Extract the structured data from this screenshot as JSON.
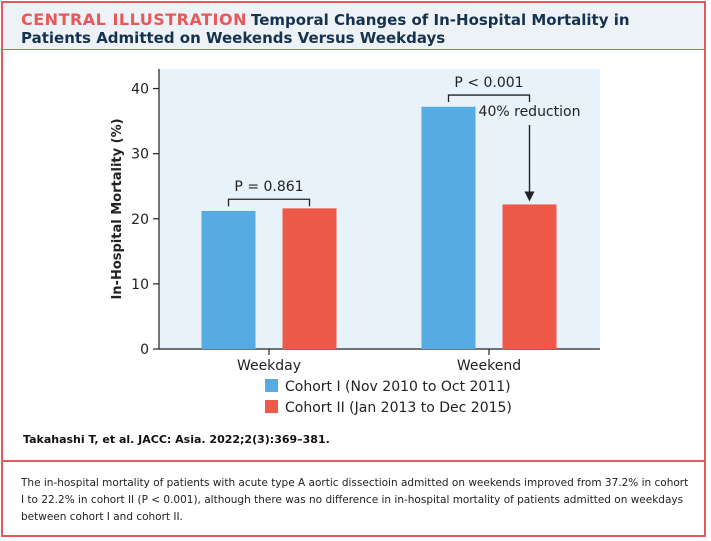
{
  "header": {
    "tag": "CENTRAL ILLUSTRATION",
    "title": "Temporal Changes of In-Hospital Mortality in Patients Admitted on Weekends Versus Weekdays"
  },
  "chart_data": {
    "type": "bar",
    "categories": [
      "Weekday",
      "Weekend"
    ],
    "series": [
      {
        "name": "Cohort I (Nov 2010 to Oct 2011)",
        "values": [
          21.2,
          37.2
        ],
        "color": "#55ace3"
      },
      {
        "name": "Cohort II (Jan 2013 to Dec 2015)",
        "values": [
          21.6,
          22.2
        ],
        "color": "#ee5a47"
      }
    ],
    "ylabel": "In-Hospital Mortality (%)",
    "ylim": [
      0,
      43
    ],
    "yticks": [
      "0",
      "10",
      "20",
      "30",
      "40"
    ],
    "annotations": [
      {
        "group": "Weekday",
        "text": "P = 0.861"
      },
      {
        "group": "Weekend",
        "text": "P < 0.001"
      },
      {
        "group": "Weekend",
        "text": "40% reduction"
      }
    ],
    "legend_position": "bottom-center",
    "grid": false,
    "plot_background": "#e8f2fb"
  },
  "citation": "Takahashi T, et al. JACC: Asia. 2022;2(3):369–381.",
  "caption": "The in-hospital mortality of patients with acute type A aortic dissectioin admitted on weekends improved from 37.2% in cohort I to 22.2% in cohort II (P < 0.001), although there was no difference in in-hospital mortality of patients admitted on weekdays between cohort I and cohort II.",
  "colors": {
    "accent": "#e8585a",
    "title": "#16324f"
  }
}
